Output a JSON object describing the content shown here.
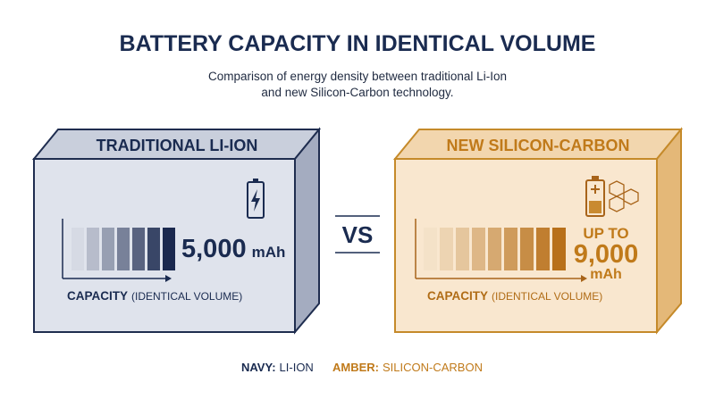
{
  "header": {
    "title": "BATTERY CAPACITY IN IDENTICAL VOLUME",
    "subtitle": [
      "Comparison of energy density between traditional Li-Ion",
      "and new Silicon-Carbon technology."
    ]
  },
  "left": {
    "label": "TRADITIONAL LI-ION",
    "value": "5,000",
    "unit": "mAh",
    "axis_label": "CAPACITY",
    "axis_note": "(IDENTICAL VOLUME)"
  },
  "vs": "VS",
  "right": {
    "label": "NEW SILICON-CARBON",
    "prefix": "UP TO",
    "value": "9,000",
    "unit": "mAh",
    "axis_label": "CAPACITY",
    "axis_note": "(IDENTICAL VOLUME)"
  },
  "legend": [
    {
      "key": "NAVY:",
      "text": "LI-ION"
    },
    {
      "key": "AMBER:",
      "text": "SILICON-CARBON"
    }
  ]
}
